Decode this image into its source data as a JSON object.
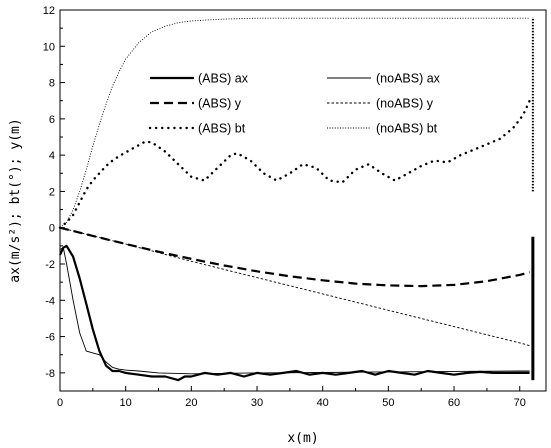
{
  "chart_data": {
    "type": "line",
    "title": "",
    "xlabel": "x(m)",
    "ylabel": "ax(m/s²); bt(°); y(m)",
    "xlim": [
      0,
      74
    ],
    "ylim": [
      -9,
      12
    ],
    "xticks": [
      0,
      10,
      20,
      30,
      40,
      50,
      60,
      70
    ],
    "yticks": [
      -8,
      -6,
      -4,
      -2,
      0,
      2,
      4,
      6,
      8,
      10,
      12
    ],
    "xtick_labels": [
      "0",
      "10",
      "20",
      "30",
      "40",
      "50",
      "60",
      "70"
    ],
    "ytick_labels": [
      "-8",
      "-6",
      "-4",
      "-2",
      "0",
      "2",
      "4",
      "6",
      "8",
      "10",
      "12"
    ],
    "grid": false,
    "legend_position": "upper-center",
    "series": [
      {
        "name": "(ABS) ax",
        "style": "solid-thick",
        "x": [
          0,
          0.5,
          1,
          2,
          3,
          4,
          5,
          6,
          7,
          8,
          9,
          10,
          12,
          14,
          16,
          18,
          19,
          20,
          22,
          24,
          26,
          28,
          30,
          32,
          34,
          36,
          38,
          40,
          42,
          44,
          46,
          48,
          50,
          52,
          54,
          56,
          58,
          60,
          62,
          64,
          66,
          68,
          70,
          71.5
        ],
        "y": [
          -1.5,
          -1.1,
          -1.0,
          -1.6,
          -2.8,
          -4.2,
          -5.6,
          -6.8,
          -7.6,
          -7.9,
          -7.9,
          -8.0,
          -8.1,
          -8.2,
          -8.2,
          -8.4,
          -8.2,
          -8.2,
          -8.0,
          -8.1,
          -8.0,
          -8.2,
          -8.0,
          -8.1,
          -8.0,
          -7.9,
          -8.1,
          -8.0,
          -8.1,
          -8.0,
          -7.9,
          -8.1,
          -7.9,
          -8.0,
          -8.1,
          -7.9,
          -8.0,
          -8.1,
          -8.0,
          -7.95,
          -8.0,
          -8.0,
          -8.0,
          -8.0
        ]
      },
      {
        "name": "(noABS) ax",
        "style": "solid-thin",
        "x": [
          0,
          0.5,
          1,
          2,
          3,
          4,
          5,
          6,
          7,
          8,
          9,
          10,
          12,
          15,
          20,
          30,
          40,
          50,
          60,
          70,
          71.5
        ],
        "y": [
          -1.2,
          -1.1,
          -2.0,
          -4.0,
          -5.8,
          -6.8,
          -6.9,
          -7.0,
          -7.4,
          -7.7,
          -7.8,
          -7.85,
          -7.9,
          -8.0,
          -8.05,
          -8.0,
          -7.98,
          -7.95,
          -7.92,
          -7.9,
          -7.9
        ]
      },
      {
        "name": "(ABS) y",
        "style": "dash-thick",
        "x": [
          0,
          5,
          10,
          15,
          20,
          25,
          30,
          35,
          40,
          45,
          50,
          55,
          60,
          65,
          70,
          71.5
        ],
        "y": [
          0,
          -0.45,
          -0.9,
          -1.32,
          -1.72,
          -2.08,
          -2.4,
          -2.68,
          -2.9,
          -3.08,
          -3.18,
          -3.22,
          -3.15,
          -2.95,
          -2.6,
          -2.45
        ]
      },
      {
        "name": "(noABS) y",
        "style": "short-dash-thin",
        "x": [
          0,
          10,
          20,
          30,
          40,
          50,
          60,
          70,
          71.5
        ],
        "y": [
          0,
          -0.9,
          -1.85,
          -2.75,
          -3.65,
          -4.55,
          -5.45,
          -6.35,
          -6.5
        ]
      },
      {
        "name": "(ABS) bt",
        "style": "dot-thick",
        "x": [
          0,
          1,
          2,
          3,
          4,
          5,
          6,
          7,
          8,
          9,
          10,
          11,
          12,
          13,
          14,
          16,
          18,
          20,
          22,
          24,
          26,
          27,
          29,
          31,
          33,
          35,
          37,
          39,
          41,
          43,
          45,
          47,
          49,
          51,
          53,
          55,
          57,
          59,
          61,
          63,
          65,
          67,
          69,
          70.5,
          71.5
        ],
        "y": [
          0,
          0.3,
          0.7,
          1.4,
          2.1,
          2.6,
          3.0,
          3.4,
          3.7,
          3.95,
          4.15,
          4.35,
          4.55,
          4.75,
          4.7,
          4.2,
          3.5,
          2.8,
          2.6,
          3.3,
          4.0,
          4.1,
          3.7,
          3.0,
          2.6,
          3.0,
          3.5,
          3.3,
          2.6,
          2.5,
          3.2,
          3.5,
          3.0,
          2.6,
          3.0,
          3.4,
          3.7,
          3.6,
          4.0,
          4.3,
          4.6,
          4.9,
          5.5,
          6.2,
          7.0
        ]
      },
      {
        "name": "(noABS) bt",
        "style": "dot-thin",
        "x": [
          0,
          1,
          2,
          3,
          4,
          5,
          6,
          7,
          8,
          9,
          10,
          12,
          14,
          16,
          18,
          20,
          25,
          30,
          35,
          40,
          50,
          60,
          70,
          71.5
        ],
        "y": [
          0,
          0.3,
          1.0,
          2.0,
          3.2,
          4.5,
          5.7,
          6.8,
          7.8,
          8.6,
          9.3,
          10.2,
          10.8,
          11.1,
          11.3,
          11.4,
          11.5,
          11.55,
          11.55,
          11.55,
          11.55,
          11.55,
          11.55,
          11.55
        ]
      }
    ]
  }
}
